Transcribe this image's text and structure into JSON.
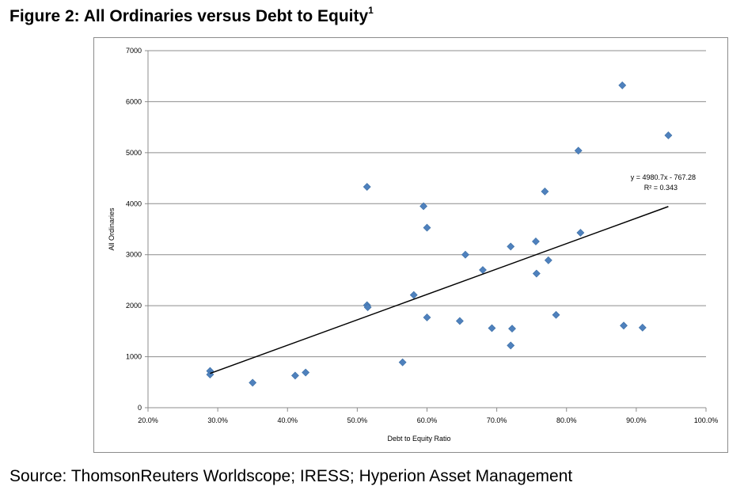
{
  "figure": {
    "title": "Figure 2: All Ordinaries versus Debt to Equity",
    "title_superscript": "1",
    "source": "Source: ThomsonReuters Worldscope; IRESS; Hyperion Asset Management"
  },
  "chart_data": {
    "type": "scatter",
    "xlabel": "Debt to Equity Ratio",
    "ylabel": "All Ordinaries",
    "xlim": [
      0.2,
      1.0
    ],
    "ylim": [
      0,
      7000
    ],
    "x_ticks": [
      0.2,
      0.3,
      0.4,
      0.5,
      0.6,
      0.7,
      0.8,
      0.9,
      1.0
    ],
    "x_tick_labels": [
      "20.0%",
      "30.0%",
      "40.0%",
      "50.0%",
      "60.0%",
      "70.0%",
      "80.0%",
      "90.0%",
      "100.0%"
    ],
    "y_ticks": [
      0,
      1000,
      2000,
      3000,
      4000,
      5000,
      6000,
      7000
    ],
    "y_tick_labels": [
      "0",
      "1000",
      "2000",
      "3000",
      "4000",
      "5000",
      "6000",
      "7000"
    ],
    "grid": "horizontal",
    "marker_color": "#4f81bd",
    "trendline_color": "#000000",
    "points": [
      {
        "x": 0.289,
        "y": 720
      },
      {
        "x": 0.289,
        "y": 650
      },
      {
        "x": 0.35,
        "y": 490
      },
      {
        "x": 0.411,
        "y": 630
      },
      {
        "x": 0.426,
        "y": 690
      },
      {
        "x": 0.514,
        "y": 4330
      },
      {
        "x": 0.514,
        "y": 2010
      },
      {
        "x": 0.515,
        "y": 1970
      },
      {
        "x": 0.565,
        "y": 890
      },
      {
        "x": 0.581,
        "y": 2210
      },
      {
        "x": 0.595,
        "y": 3950
      },
      {
        "x": 0.6,
        "y": 3530
      },
      {
        "x": 0.6,
        "y": 1770
      },
      {
        "x": 0.647,
        "y": 1700
      },
      {
        "x": 0.655,
        "y": 3000
      },
      {
        "x": 0.68,
        "y": 2700
      },
      {
        "x": 0.693,
        "y": 1560
      },
      {
        "x": 0.72,
        "y": 3160
      },
      {
        "x": 0.72,
        "y": 1220
      },
      {
        "x": 0.722,
        "y": 1550
      },
      {
        "x": 0.756,
        "y": 3260
      },
      {
        "x": 0.757,
        "y": 2630
      },
      {
        "x": 0.769,
        "y": 4240
      },
      {
        "x": 0.774,
        "y": 2890
      },
      {
        "x": 0.785,
        "y": 1820
      },
      {
        "x": 0.817,
        "y": 5040
      },
      {
        "x": 0.82,
        "y": 3430
      },
      {
        "x": 0.88,
        "y": 6320
      },
      {
        "x": 0.882,
        "y": 1610
      },
      {
        "x": 0.909,
        "y": 1570
      },
      {
        "x": 0.946,
        "y": 5340
      }
    ],
    "trendline": {
      "slope": 4980.7,
      "intercept": -767.28,
      "x_range": [
        0.289,
        0.946
      ],
      "equation": "y = 4980.7x - 767.28",
      "r_squared": "R² = 0.343"
    }
  }
}
